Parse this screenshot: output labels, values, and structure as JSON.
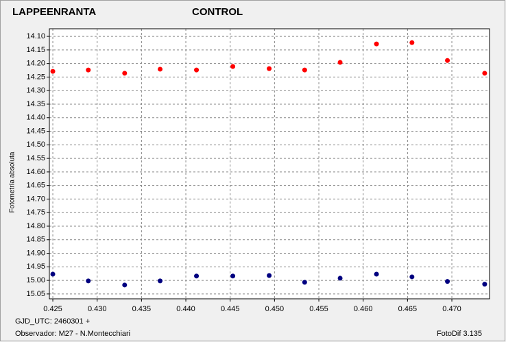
{
  "chart_data": {
    "type": "scatter",
    "y_label": "Fotometría absoluta",
    "footer_left_1": "GJD_UTC: 2460301 +",
    "footer_left_2": "Observador: M27 - N.Montecchiari",
    "footer_right": "FotoDif 3.135",
    "xlim": [
      0.42461,
      0.47425
    ],
    "ylim": [
      15.068,
      14.072
    ],
    "xticks": [
      0.425,
      {
        "value": 0.43,
        "label": "0.430"
      },
      0.435,
      {
        "value": 0.44,
        "label": "0.440"
      },
      0.445,
      {
        "value": 0.45,
        "label": "0.450"
      },
      0.455,
      {
        "value": 0.46,
        "label": "0.460"
      },
      0.465,
      {
        "value": 0.47,
        "label": "0.470"
      }
    ],
    "yticks": [
      {
        "value": 14.1,
        "label": "14.10"
      },
      {
        "value": 14.15,
        "label": "14.15"
      },
      {
        "value": 14.2,
        "label": "14.20"
      },
      {
        "value": 14.25,
        "label": "14.25"
      },
      {
        "value": 14.3,
        "label": "14.30"
      },
      {
        "value": 14.35,
        "label": "14.35"
      },
      {
        "value": 14.4,
        "label": "14.40"
      },
      {
        "value": 14.45,
        "label": "14.45"
      },
      {
        "value": 14.5,
        "label": "14.50"
      },
      {
        "value": 14.55,
        "label": "14.55"
      },
      {
        "value": 14.6,
        "label": "14.60"
      },
      {
        "value": 14.65,
        "label": "14.65"
      },
      {
        "value": 14.7,
        "label": "14.70"
      },
      {
        "value": 14.75,
        "label": "14.75"
      },
      {
        "value": 14.8,
        "label": "14.80"
      },
      {
        "value": 14.85,
        "label": "14.85"
      },
      {
        "value": 14.9,
        "label": "14.90"
      },
      {
        "value": 14.95,
        "label": "14.95"
      },
      {
        "value": 15.0,
        "label": "15.00"
      },
      {
        "value": 15.05,
        "label": "15.05"
      }
    ],
    "grid": true,
    "series": [
      {
        "name": "LAPPEENRANTA",
        "color": "#ff0000",
        "x": [
          0.425,
          0.429,
          0.4331,
          0.4371,
          0.4412,
          0.4453,
          0.4494,
          0.4534,
          0.4574,
          0.4615,
          0.4655,
          0.4695,
          0.4737
        ],
        "values": [
          14.229,
          14.224,
          14.236,
          14.221,
          14.224,
          14.211,
          14.219,
          14.224,
          14.196,
          14.128,
          14.123,
          14.189,
          14.236
        ]
      },
      {
        "name": "CONTROL",
        "color": "#000080",
        "x": [
          0.425,
          0.429,
          0.4331,
          0.4371,
          0.4412,
          0.4453,
          0.4494,
          0.4534,
          0.4574,
          0.4615,
          0.4655,
          0.4695,
          0.4737
        ],
        "values": [
          14.977,
          15.002,
          15.017,
          15.002,
          14.984,
          14.984,
          14.982,
          15.007,
          14.992,
          14.977,
          14.987,
          15.004,
          15.014
        ]
      }
    ]
  }
}
